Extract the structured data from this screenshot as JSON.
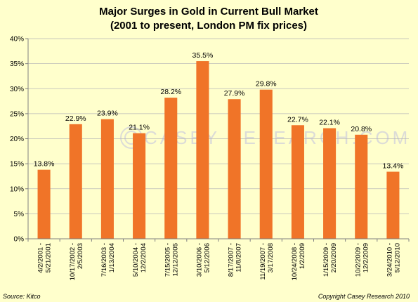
{
  "chart_data": {
    "type": "bar",
    "title": "Major Surges in Gold in Current Bull Market",
    "subtitle": "(2001 to present, London PM fix prices)",
    "categories": [
      [
        "4/2/2001 -",
        "5/21/2001"
      ],
      [
        "10/17/2002 -",
        "2/5/2003"
      ],
      [
        "7/16/2003 -",
        "1/13/2004"
      ],
      [
        "5/10/2004 -",
        "12/2/2004"
      ],
      [
        "7/15/2005 -",
        "12/12/2005"
      ],
      [
        "3/10/2006 -",
        "5/12/2006"
      ],
      [
        "8/17/2007 -",
        "11/8/2007"
      ],
      [
        "11/19/2007 -",
        "3/17/2008"
      ],
      [
        "10/24/2008 -",
        "1/2/2009"
      ],
      [
        "1/15/2009 -",
        "2/20/2009"
      ],
      [
        "10/2/2009 -",
        "12/2/2009"
      ],
      [
        "3/24/2010 -",
        "5/12/2010"
      ]
    ],
    "values": [
      13.8,
      22.9,
      23.9,
      21.1,
      28.2,
      35.5,
      27.9,
      29.8,
      22.7,
      22.1,
      20.8,
      13.4
    ],
    "value_labels": [
      "13.8%",
      "22.9%",
      "23.9%",
      "21.1%",
      "28.2%",
      "35.5%",
      "27.9%",
      "29.8%",
      "22.7%",
      "22.1%",
      "20.8%",
      "13.4%"
    ],
    "ylim": [
      0,
      40
    ],
    "yticks": [
      0,
      5,
      10,
      15,
      20,
      25,
      30,
      35,
      40
    ],
    "ytick_labels": [
      "0%",
      "5%",
      "10%",
      "15%",
      "20%",
      "25%",
      "30%",
      "35%",
      "40%"
    ],
    "grid": true,
    "bar_color": "#f07428",
    "background_color": "#ffffcc",
    "source": "Source: Kitco",
    "copyright": "Copyright Casey Research 2010",
    "watermark": "CASEY RESEARCH.COM"
  }
}
